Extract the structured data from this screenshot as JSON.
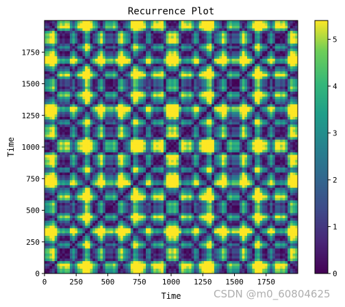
{
  "chart_data": {
    "type": "heatmap",
    "title": "Recurrence Plot",
    "xlabel": "Time",
    "ylabel": "Time",
    "xlim": [
      0,
      2000
    ],
    "ylim": [
      0,
      2000
    ],
    "xticks": [
      0,
      250,
      500,
      750,
      1000,
      1250,
      1500,
      1750
    ],
    "yticks": [
      0,
      250,
      500,
      750,
      1000,
      1250,
      1500,
      1750
    ],
    "colormap": "viridis",
    "colorbar": {
      "range": [
        0,
        5.4
      ],
      "ticks": [
        0,
        1,
        2,
        3,
        4,
        5
      ]
    },
    "pattern": {
      "sample_points": [
        {
          "x": 480,
          "y": 1240,
          "value": 4.9
        },
        {
          "x": 1120,
          "y": 1240,
          "value": 5.0
        },
        {
          "x": 1240,
          "y": 1240,
          "value": 0.0
        },
        {
          "x": 1370,
          "y": 1240,
          "value": 5.2
        },
        {
          "x": 1240,
          "y": 500,
          "value": 4.6
        },
        {
          "x": 200,
          "y": 1240,
          "value": 3.8
        }
      ]
    }
  },
  "watermark": "CSDN @m0_60804625"
}
